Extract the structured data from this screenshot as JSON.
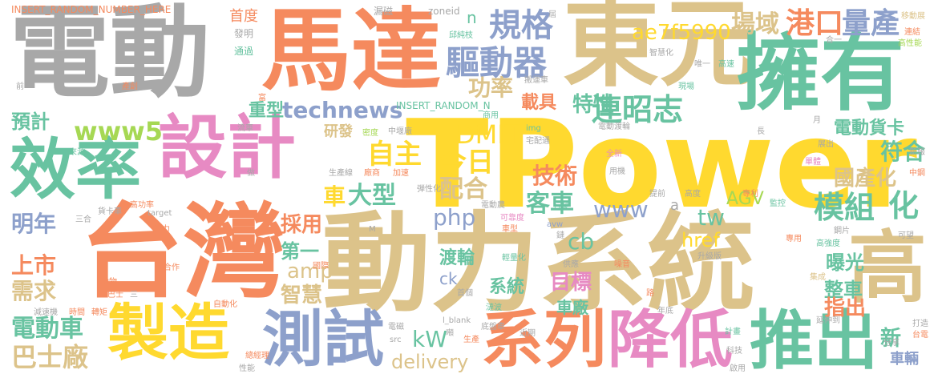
{
  "palette": {
    "gray": "#a8a8a8",
    "orange": "#f58a5e",
    "tan": "#dcc38a",
    "teal": "#68c3a1",
    "blue": "#8da0cb",
    "pink": "#e78ac3",
    "green": "#a6d854",
    "yellow": "#ffd92f"
  },
  "words": [
    {
      "text": "電動",
      "color": "gray"
    },
    {
      "text": "馬達",
      "color": "orange"
    },
    {
      "text": "東元",
      "color": "tan"
    },
    {
      "text": "擁有",
      "color": "teal"
    },
    {
      "text": "TPower",
      "color": "yellow"
    },
    {
      "text": "設計",
      "color": "pink"
    },
    {
      "text": "效率",
      "color": "teal"
    },
    {
      "text": "台灣",
      "color": "orange"
    },
    {
      "text": "動力系統",
      "color": "tan"
    },
    {
      "text": "高",
      "color": "tan"
    },
    {
      "text": "製造",
      "color": "yellow"
    },
    {
      "text": "測試",
      "color": "blue"
    },
    {
      "text": "系列",
      "color": "orange"
    },
    {
      "text": "降低",
      "color": "pink"
    },
    {
      "text": "推出",
      "color": "teal"
    },
    {
      "text": "驅動器",
      "color": "blue"
    },
    {
      "text": "規格",
      "color": "blue"
    },
    {
      "text": "場域",
      "color": "tan"
    },
    {
      "text": "港口",
      "color": "orange"
    },
    {
      "text": "量產",
      "color": "blue"
    },
    {
      "text": "ae7f5990",
      "color": "yellow"
    },
    {
      "text": "連昭志",
      "color": "teal"
    },
    {
      "text": "功率",
      "color": "tan"
    },
    {
      "text": "technews",
      "color": "blue"
    },
    {
      "text": "www5",
      "color": "green"
    },
    {
      "text": "重型",
      "color": "teal"
    },
    {
      "text": "預計",
      "color": "teal"
    },
    {
      "text": "自主",
      "color": "yellow"
    },
    {
      "text": "今日",
      "color": "yellow"
    },
    {
      "text": "DMIT",
      "color": "yellow"
    },
    {
      "text": "技術",
      "color": "orange"
    },
    {
      "text": "客車",
      "color": "teal"
    },
    {
      "text": "配合",
      "color": "tan"
    },
    {
      "text": "車",
      "color": "yellow"
    },
    {
      "text": "大型",
      "color": "teal"
    },
    {
      "text": "特性",
      "color": "teal"
    },
    {
      "text": "載具",
      "color": "orange"
    },
    {
      "text": "模組",
      "color": "teal"
    },
    {
      "text": "化",
      "color": "teal"
    },
    {
      "text": "符合",
      "color": "teal"
    },
    {
      "text": "國產化",
      "color": "tan"
    },
    {
      "text": "電動貨卡",
      "color": "teal"
    },
    {
      "text": "AGV",
      "color": "green"
    },
    {
      "text": "www",
      "color": "blue"
    },
    {
      "text": "tw",
      "color": "teal"
    },
    {
      "text": "php",
      "color": "blue"
    },
    {
      "text": "明年",
      "color": "blue"
    },
    {
      "text": "採用",
      "color": "orange"
    },
    {
      "text": "上市",
      "color": "orange"
    },
    {
      "text": "需求",
      "color": "tan"
    },
    {
      "text": "第一",
      "color": "teal"
    },
    {
      "text": "amp",
      "color": "tan"
    },
    {
      "text": "cb",
      "color": "teal"
    },
    {
      "text": "href",
      "color": "yellow"
    },
    {
      "text": "曝光",
      "color": "teal"
    },
    {
      "text": "目標",
      "color": "pink"
    },
    {
      "text": "渡輪",
      "color": "teal"
    },
    {
      "text": "ck",
      "color": "blue"
    },
    {
      "text": "系統",
      "color": "teal"
    },
    {
      "text": "智慧",
      "color": "tan"
    },
    {
      "text": "車廠",
      "color": "teal"
    },
    {
      "text": "整車",
      "color": "teal"
    },
    {
      "text": "指出",
      "color": "orange"
    },
    {
      "text": "電動車",
      "color": "teal"
    },
    {
      "text": "巴士廠",
      "color": "tan"
    },
    {
      "text": "kW",
      "color": "teal"
    },
    {
      "text": "delivery",
      "color": "tan"
    },
    {
      "text": "新",
      "color": "teal"
    },
    {
      "text": "車輛",
      "color": "blue"
    },
    {
      "text": "研發",
      "color": "tan"
    },
    {
      "text": "首度",
      "color": "orange"
    },
    {
      "text": "發明",
      "color": "gray"
    },
    {
      "text": "通過",
      "color": "teal"
    },
    {
      "text": "INSERT_RANDOM_NUMBER_HERE",
      "color": "orange"
    },
    {
      "text": "INSERT_RANDOM_N",
      "color": "teal"
    },
    {
      "text": "漏磁",
      "color": "gray"
    },
    {
      "text": "zoneid",
      "color": "gray"
    },
    {
      "text": "屆",
      "color": "gray"
    },
    {
      "text": "移動展",
      "color": "tan"
    },
    {
      "text": "連結",
      "color": "orange"
    },
    {
      "text": "高性能",
      "color": "green"
    },
    {
      "text": "合一",
      "color": "gray"
    },
    {
      "text": "n",
      "color": "teal"
    },
    {
      "text": "邱純枝",
      "color": "teal"
    },
    {
      "text": "智慧化",
      "color": "gray"
    },
    {
      "text": "唯一",
      "color": "gray"
    },
    {
      "text": "高速",
      "color": "teal"
    },
    {
      "text": "搬運車",
      "color": "gray"
    },
    {
      "text": "現場",
      "color": "teal"
    },
    {
      "text": "前",
      "color": "gray"
    },
    {
      "text": "產創",
      "color": "orange"
    },
    {
      "text": "富",
      "color": "orange"
    },
    {
      "text": "流車",
      "color": "gray"
    },
    {
      "text": "來源",
      "color": "teal"
    },
    {
      "text": "密度",
      "color": "green"
    },
    {
      "text": "中堰廠",
      "color": "gray"
    },
    {
      "text": "商用",
      "color": "teal"
    },
    {
      "text": "img",
      "color": "teal"
    },
    {
      "text": "宅配通",
      "color": "gray"
    },
    {
      "text": "電動渡輪",
      "color": "gray"
    },
    {
      "text": "月",
      "color": "gray"
    },
    {
      "text": "長",
      "color": "gray"
    },
    {
      "text": "展出",
      "color": "gray"
    },
    {
      "text": "新報",
      "color": "gray"
    },
    {
      "text": "中鋼",
      "color": "orange"
    },
    {
      "text": "全新",
      "color": "pink"
    },
    {
      "text": "單體",
      "color": "pink"
    },
    {
      "text": "專利",
      "color": "orange"
    },
    {
      "text": "監控",
      "color": "teal"
    },
    {
      "text": "做",
      "color": "gray"
    },
    {
      "text": "生產線",
      "color": "gray"
    },
    {
      "text": "廠商",
      "color": "orange"
    },
    {
      "text": "加速",
      "color": "orange"
    },
    {
      "text": "弾性化",
      "color": "gray"
    },
    {
      "text": "用機",
      "color": "gray"
    },
    {
      "text": "提前",
      "color": "gray"
    },
    {
      "text": "高度",
      "color": "gray"
    },
    {
      "text": "電動農",
      "color": "gray"
    },
    {
      "text": "可靠度",
      "color": "pink"
    },
    {
      "text": "車型",
      "color": "orange"
    },
    {
      "text": "高功率",
      "color": "orange"
    },
    {
      "text": "貨卡車",
      "color": "gray"
    },
    {
      "text": "三合",
      "color": "gray"
    },
    {
      "text": "target",
      "color": "gray"
    },
    {
      "text": "能力",
      "color": "orange"
    },
    {
      "text": "國際",
      "color": "orange"
    },
    {
      "text": "行駛",
      "color": "teal"
    },
    {
      "text": "avw",
      "color": "blue"
    },
    {
      "text": "鏈",
      "color": "gray"
    },
    {
      "text": "專用",
      "color": "orange"
    },
    {
      "text": "鋼片",
      "color": "gray"
    },
    {
      "text": "可望",
      "color": "gray"
    },
    {
      "text": "高強度",
      "color": "teal"
    },
    {
      "text": "M",
      "color": "gray"
    },
    {
      "text": "合作",
      "color": "orange"
    },
    {
      "text": "輕量化",
      "color": "teal"
    },
    {
      "text": "供應",
      "color": "gray"
    },
    {
      "text": "升級版",
      "color": "gray"
    },
    {
      "text": "噪音",
      "color": "orange"
    },
    {
      "text": "集成",
      "color": "tan"
    },
    {
      "text": "動物",
      "color": "orange"
    },
    {
      "text": "巴士",
      "color": "orange"
    },
    {
      "text": "三",
      "color": "gray"
    },
    {
      "text": "首個",
      "color": "gray"
    },
    {
      "text": "路",
      "color": "orange"
    },
    {
      "text": "延伸到",
      "color": "gray"
    },
    {
      "text": "自動化",
      "color": "orange"
    },
    {
      "text": "年底",
      "color": "gray"
    },
    {
      "text": "打造",
      "color": "gray"
    },
    {
      "text": "台電",
      "color": "orange"
    },
    {
      "text": "減速機",
      "color": "gray"
    },
    {
      "text": "時間",
      "color": "orange"
    },
    {
      "text": "轉矩",
      "color": "orange"
    },
    {
      "text": "漣波",
      "color": "teal"
    },
    {
      "text": "l_blank",
      "color": "gray"
    },
    {
      "text": "電磁",
      "color": "gray"
    },
    {
      "text": "噸",
      "color": "gray"
    },
    {
      "text": "src",
      "color": "gray"
    },
    {
      "text": "生產",
      "color": "orange"
    },
    {
      "text": "近期",
      "color": "gray"
    },
    {
      "text": "底盤車",
      "color": "gray"
    },
    {
      "text": "計畫",
      "color": "teal"
    },
    {
      "text": "科技",
      "color": "gray"
    },
    {
      "text": "分享",
      "color": "gray"
    },
    {
      "text": "總經理",
      "color": "orange"
    },
    {
      "text": "性能",
      "color": "gray"
    },
    {
      "text": "啟用",
      "color": "gray"
    },
    {
      "text": "a",
      "color": "gray"
    }
  ]
}
